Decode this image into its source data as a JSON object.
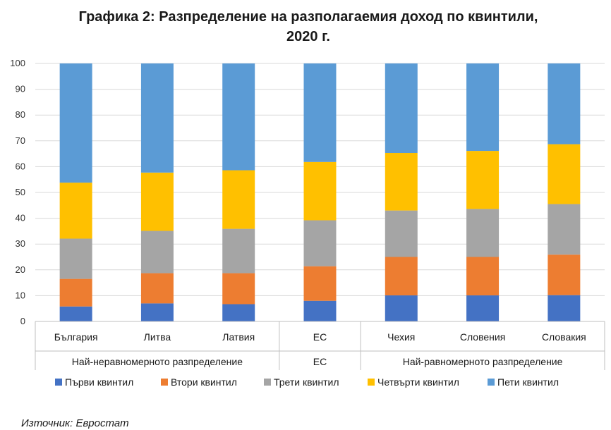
{
  "chart_data": {
    "type": "bar",
    "stacked": true,
    "title_line1": "Графика 2: Разпределение на разполагаемия доход по квинтили,",
    "title_line2": "2020 г.",
    "categories": [
      "България",
      "Литва",
      "Латвия",
      "ЕС",
      "Чехия",
      "Словения",
      "Словакия"
    ],
    "groups": [
      {
        "label": "Най-неравномерното разпределение",
        "count": 3
      },
      {
        "label": "ЕС",
        "count": 1
      },
      {
        "label": "Най-равномерното разпределение",
        "count": 3
      }
    ],
    "series": [
      {
        "name": "Първи квинтил",
        "color": "#4472C4",
        "values": [
          5.8,
          7.0,
          6.7,
          8.0,
          10.1,
          10.1,
          10.2
        ]
      },
      {
        "name": "Втори квинтил",
        "color": "#ED7D31",
        "values": [
          10.7,
          11.7,
          12.0,
          13.4,
          14.9,
          14.9,
          15.7
        ]
      },
      {
        "name": "Трети квинтил",
        "color": "#A5A5A5",
        "values": [
          15.6,
          16.4,
          17.2,
          17.8,
          18.0,
          18.6,
          19.6
        ]
      },
      {
        "name": "Четвърти квинтил",
        "color": "#FFC000",
        "values": [
          21.7,
          22.6,
          22.7,
          22.6,
          22.3,
          22.5,
          23.2
        ]
      },
      {
        "name": "Пети квинтил",
        "color": "#5B9BD5",
        "values": [
          46.2,
          42.3,
          41.4,
          38.2,
          34.7,
          33.9,
          31.3
        ]
      }
    ],
    "ylim": [
      0,
      100
    ],
    "yticks": [
      0,
      10,
      20,
      30,
      40,
      50,
      60,
      70,
      80,
      90,
      100
    ],
    "grid": true,
    "legend_position": "bottom"
  },
  "source": "Източник: Евростат"
}
